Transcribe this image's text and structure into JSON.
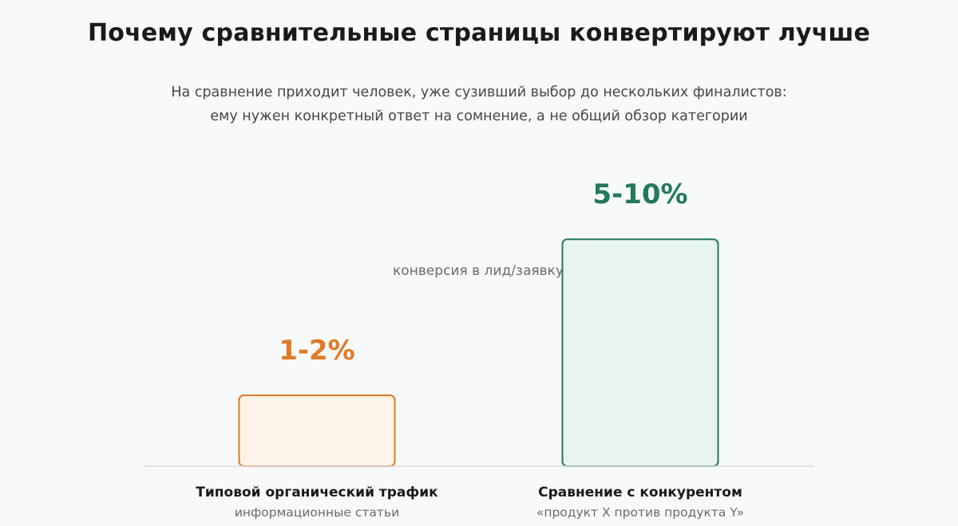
{
  "header": {
    "title": "Почему сравнительные страницы конвертируют лучше",
    "subtitle_lines": [
      "На сравнение приходит человек, уже сузивший выбор до нескольких финалистов:",
      "ему нужен конкретный ответ на сомнение, а не общий обзор категории"
    ]
  },
  "chart_data": {
    "type": "bar",
    "metric_label": "конверсия в лид/заявку",
    "ylim": [
      0,
      10
    ],
    "grid": false,
    "bars": [
      {
        "category": "Типовой органический трафик",
        "sublabel": "информационные статьи",
        "value_label": "1-2%",
        "value": 2,
        "stroke": "#e07b24",
        "fill": "#fdf3e8",
        "label_color": "#e07b24"
      },
      {
        "category": "Сравнение с конкурентом",
        "sublabel": "«продукт X против продукта Y»",
        "value_label": "5-10%",
        "value": 6.4,
        "stroke": "#217a57",
        "fill": "#e8f5ef",
        "label_color": "#217a57"
      }
    ]
  }
}
